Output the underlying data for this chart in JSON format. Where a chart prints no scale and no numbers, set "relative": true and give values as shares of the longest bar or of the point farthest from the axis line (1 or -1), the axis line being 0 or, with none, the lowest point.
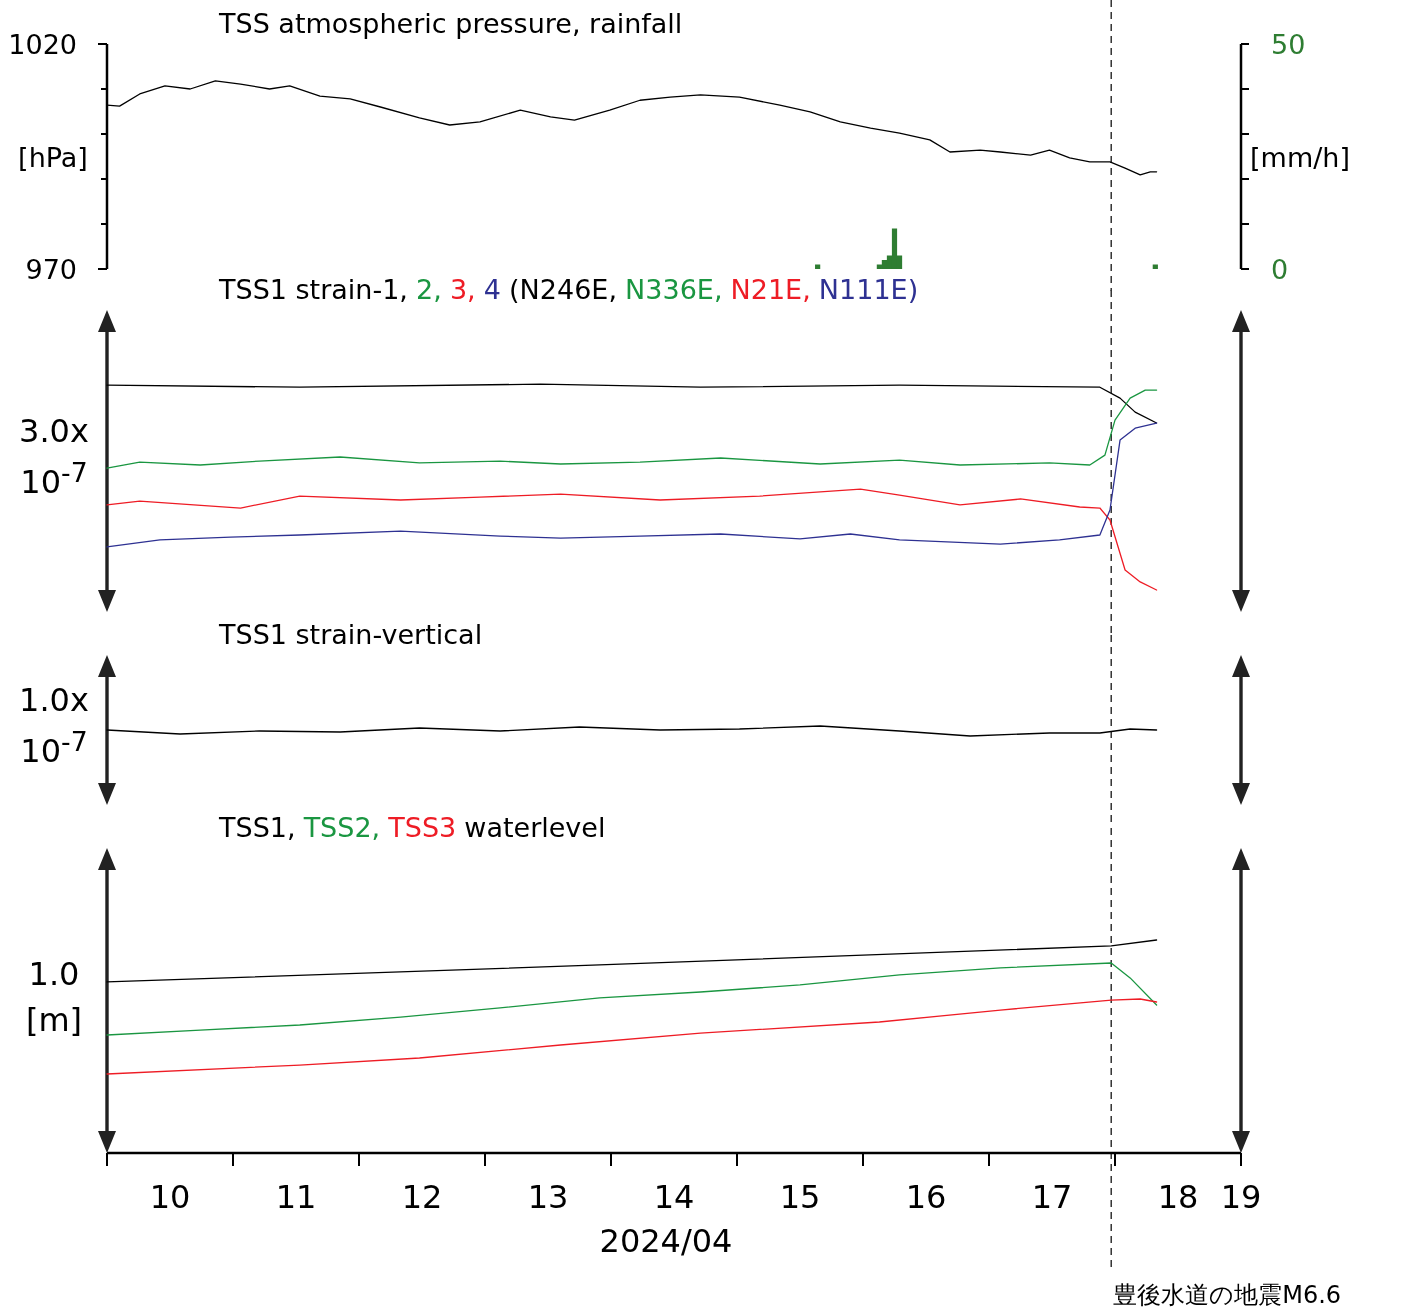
{
  "chart_data": [
    {
      "type": "line",
      "title": "TSS atmospheric pressure, rainfall",
      "ylabel": "[hPa]",
      "y2label": "[mm/h]",
      "xlim": [
        10,
        19
      ],
      "ylim": [
        970,
        1020
      ],
      "yticks": [
        970,
        {
          "value": 980,
          "label": null
        },
        {
          "value": 990,
          "label": null
        },
        {
          "value": 1000,
          "label": null
        },
        {
          "value": 1010,
          "label": null
        },
        1020
      ],
      "y2lim": [
        0,
        50
      ],
      "y2ticks": [
        0,
        {
          "value": 10,
          "label": null
        },
        {
          "value": 20,
          "label": null
        },
        {
          "value": 30,
          "label": null
        },
        {
          "value": 40,
          "label": null
        },
        50
      ],
      "tick_labels": "y",
      "ref_lines": [
        {
          "axis": "x",
          "value": 17.97,
          "line_style": "dashed",
          "color": "#333333"
        }
      ],
      "series": [
        {
          "color": "#000000",
          "x": [
            10,
            10.1,
            10.26,
            10.46,
            10.66,
            10.86,
            11.06,
            11.29,
            11.45,
            11.69,
            11.93,
            12.17,
            12.48,
            12.72,
            12.96,
            13.28,
            13.52,
            13.71,
            13.99,
            14.23,
            14.47,
            14.71,
            15.02,
            15.34,
            15.58,
            15.82,
            16.06,
            16.29,
            16.53,
            16.69,
            16.93,
            17.09,
            17.33,
            17.48,
            17.64,
            17.8,
            17.96,
            18.08,
            18.2,
            18.28,
            18.33
          ],
          "values": [
            1006.4,
            1006.2,
            1008.9,
            1010.7,
            1010.0,
            1011.8,
            1011.1,
            1010.0,
            1010.7,
            1008.4,
            1007.8,
            1006.0,
            1003.6,
            1002.0,
            1002.7,
            1005.3,
            1003.8,
            1003.1,
            1005.3,
            1007.5,
            1008.2,
            1008.7,
            1008.2,
            1006.4,
            1004.9,
            1002.7,
            1001.3,
            1000.2,
            998.7,
            996.0,
            996.4,
            996.0,
            995.3,
            996.4,
            994.7,
            993.8,
            993.8,
            992.4,
            990.9,
            991.6,
            991.6
          ]
        },
        {
          "type": "bar",
          "axis": "y2",
          "color": "#2e7d32",
          "x": [
            15.64,
            16.13,
            16.17,
            16.21,
            16.25,
            16.29,
            18.32
          ],
          "values": [
            1,
            1,
            2,
            3,
            9,
            3,
            1
          ]
        }
      ]
    },
    {
      "type": "line",
      "relative": true,
      "title": "TSS1 strain-",
      "tick_labels": false,
      "xlim": [
        10,
        19
      ],
      "annotations": [
        "(N246E,",
        "N336E,",
        "N21E,",
        "N111E)",
        "3.0x 10$^{-7}$"
      ],
      "ref_lines": [
        {
          "axis": "x",
          "value": 17.97,
          "line_style": "dashed",
          "color": "#333333"
        }
      ],
      "series": [
        {
          "name": "1,",
          "color": "#000000",
          "x": [
            10,
            11.53,
            13.44,
            14.71,
            16.29,
            17.88,
            18.04,
            18.16,
            18.33
          ],
          "values": [
            0.995,
            0.985,
            1,
            0.985,
            0.995,
            0.985,
            0.932,
            0.864,
            0.811
          ]
        },
        {
          "name": "2,",
          "color": "#1a9641",
          "x": [
            10,
            10.26,
            10.74,
            11.21,
            11.85,
            12.48,
            13.12,
            13.6,
            14.23,
            14.87,
            15.66,
            16.29,
            16.77,
            17.48,
            17.8,
            17.92,
            18.0,
            18.12,
            18.24,
            18.33
          ],
          "values": [
            0.592,
            0.621,
            0.607,
            0.626,
            0.646,
            0.617,
            0.626,
            0.612,
            0.621,
            0.641,
            0.612,
            0.631,
            0.607,
            0.617,
            0.607,
            0.655,
            0.825,
            0.932,
            0.971,
            0.971
          ]
        },
        {
          "name": "3,",
          "color": "#ee1c25",
          "x": [
            10,
            10.26,
            11.06,
            11.53,
            12.33,
            12.96,
            13.6,
            14.39,
            15.18,
            15.98,
            16.29,
            16.77,
            17.25,
            17.72,
            17.88,
            17.96,
            18.08,
            18.2,
            18.33
          ],
          "values": [
            0.413,
            0.432,
            0.398,
            0.456,
            0.437,
            0.451,
            0.466,
            0.437,
            0.456,
            0.49,
            0.461,
            0.413,
            0.442,
            0.403,
            0.398,
            0.34,
            0.097,
            0.039,
            0
          ]
        },
        {
          "name": "4",
          "color": "#2e3192",
          "x": [
            10,
            10.42,
            10.98,
            11.53,
            12.33,
            13.12,
            13.6,
            14.23,
            14.87,
            15.5,
            15.9,
            16.29,
            17.09,
            17.56,
            17.88,
            17.96,
            18.04,
            18.16,
            18.33
          ],
          "values": [
            0.209,
            0.243,
            0.257,
            0.267,
            0.286,
            0.262,
            0.252,
            0.262,
            0.272,
            0.248,
            0.272,
            0.243,
            0.223,
            0.243,
            0.267,
            0.388,
            0.728,
            0.786,
            0.811
          ]
        }
      ]
    },
    {
      "type": "line",
      "relative": true,
      "title": "TSS1 strain-vertical",
      "tick_labels": false,
      "xlim": [
        10,
        19
      ],
      "annotations": [
        "1.0x 10$^{-7}$"
      ],
      "ref_lines": [
        {
          "axis": "x",
          "value": 17.97,
          "line_style": "dashed",
          "color": "#333333"
        }
      ],
      "series": [
        {
          "color": "#000000",
          "x": [
            10,
            10.58,
            11.21,
            11.85,
            12.48,
            13.12,
            13.75,
            14.39,
            15.02,
            15.66,
            16.29,
            16.85,
            17.48,
            17.88,
            18.12,
            18.33
          ],
          "values": [
            0.6,
            0.2,
            0.5,
            0.4,
            0.8,
            0.5,
            0.9,
            0.6,
            0.7,
            1,
            0.5,
            0,
            0.3,
            0.3,
            0.7,
            0.6
          ]
        }
      ]
    },
    {
      "type": "line",
      "relative": true,
      "title": "waterlevel",
      "xlabel": "2024/04",
      "tick_labels": "x",
      "xlim": [
        10,
        19
      ],
      "xticks": [
        {
          "value": 10,
          "label": null
        },
        {
          "value": 10.5,
          "label": "10"
        },
        {
          "value": 11,
          "label": null
        },
        {
          "value": 11.5,
          "label": "11"
        },
        {
          "value": 12,
          "label": null
        },
        {
          "value": 12.5,
          "label": "12"
        },
        {
          "value": 13,
          "label": null
        },
        {
          "value": 13.5,
          "label": "13"
        },
        {
          "value": 14,
          "label": null
        },
        {
          "value": 14.5,
          "label": "14"
        },
        {
          "value": 15,
          "label": null
        },
        {
          "value": 15.5,
          "label": "15"
        },
        {
          "value": 16,
          "label": null
        },
        {
          "value": 16.5,
          "label": "16"
        },
        {
          "value": 17,
          "label": null
        },
        {
          "value": 17.5,
          "label": "17"
        },
        {
          "value": 18,
          "label": null
        },
        {
          "value": 18.5,
          "label": "18"
        },
        {
          "value": 19,
          "label": "19"
        }
      ],
      "annotations": [
        "1.0 [m]"
      ],
      "ref_lines": [
        {
          "axis": "x",
          "value": 17.97,
          "line_style": "dashed",
          "color": "#333333",
          "label": "豊後水道の地震M6.6"
        }
      ],
      "series": [
        {
          "name": "TSS1,",
          "color": "#000000",
          "x": [
            10,
            13.91,
            17.97,
            18.33
          ],
          "values": [
            0.803,
            0.883,
            0.972,
            1
          ]
        },
        {
          "name": "TSS2,",
          "color": "#1a9641",
          "x": [
            10,
            10.74,
            11.53,
            12.33,
            13.12,
            13.91,
            14.71,
            15.5,
            16.29,
            17.09,
            17.97,
            18.12,
            18.33
          ],
          "values": [
            0.554,
            0.577,
            0.601,
            0.638,
            0.681,
            0.728,
            0.756,
            0.789,
            0.836,
            0.869,
            0.892,
            0.822,
            0.695
          ]
        },
        {
          "name": "TSS3",
          "color": "#ee1c25",
          "x": [
            10,
            11.53,
            12.48,
            13.6,
            14.71,
            16.13,
            17.09,
            17.97,
            18.2,
            18.33
          ],
          "values": [
            0.371,
            0.413,
            0.446,
            0.507,
            0.563,
            0.615,
            0.671,
            0.718,
            0.723,
            0.709
          ]
        }
      ]
    }
  ]
}
